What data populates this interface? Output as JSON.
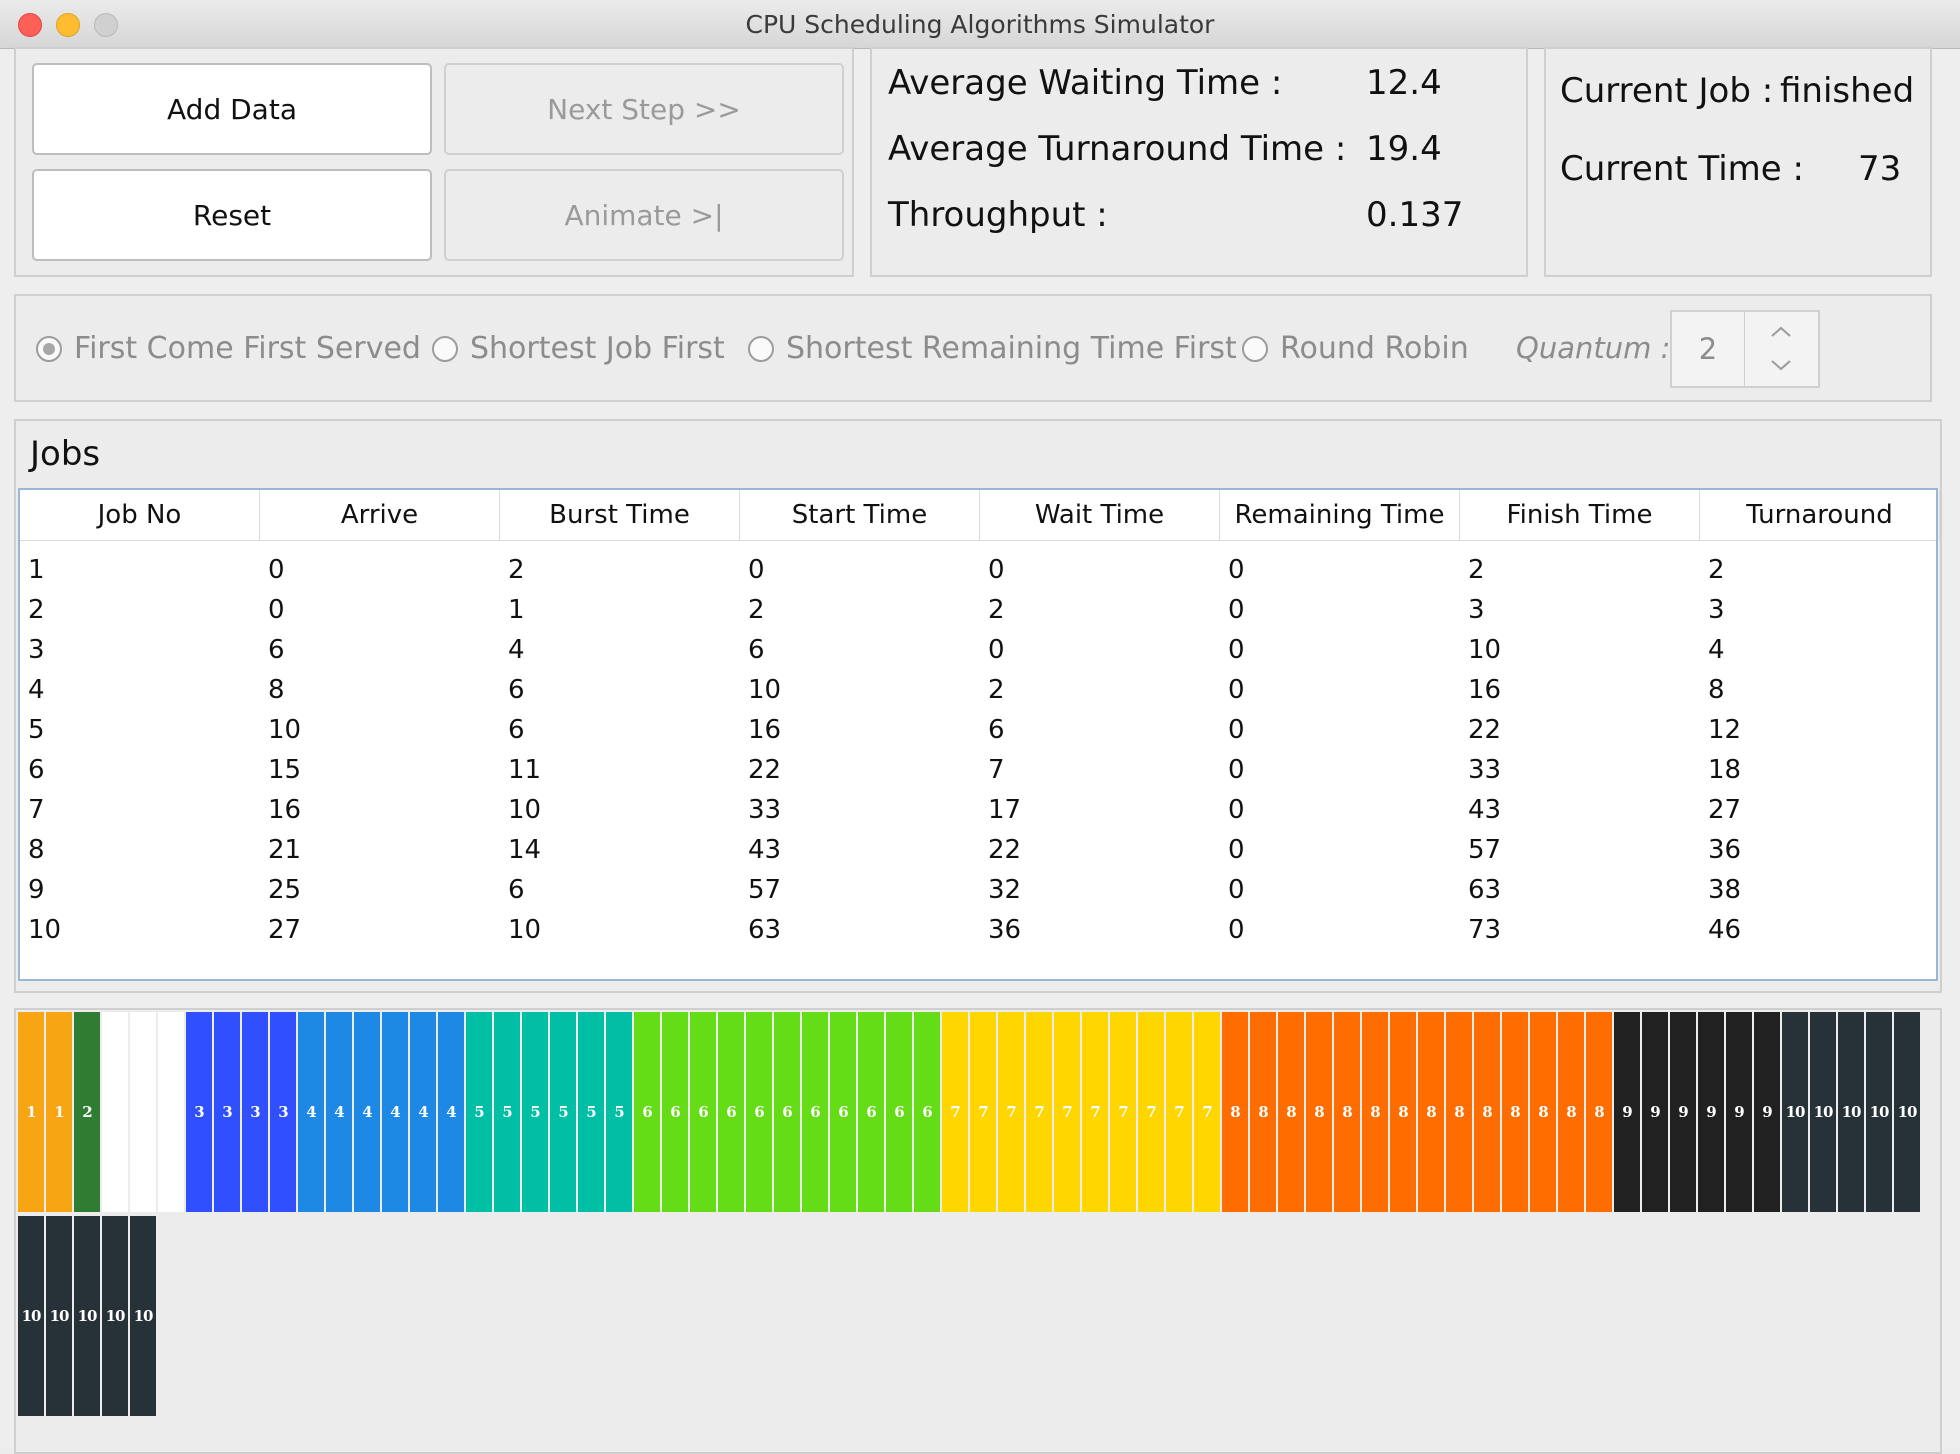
{
  "window": {
    "title": "CPU Scheduling Algorithms Simulator"
  },
  "controls": {
    "add_data": "Add Data",
    "next_step": "Next Step >>",
    "reset": "Reset",
    "animate": "Animate >|"
  },
  "stats": {
    "avg_wait_label": "Average Waiting Time :",
    "avg_wait_value": "12.4",
    "avg_turn_label": "Average Turnaround Time :",
    "avg_turn_value": "19.4",
    "throughput_label": "Throughput :",
    "throughput_value": "0.137"
  },
  "status": {
    "current_job_label": "Current Job :",
    "current_job_value": "finished",
    "current_time_label": "Current Time :",
    "current_time_value": "73"
  },
  "algorithms": {
    "options": [
      {
        "label": "First Come First Served",
        "selected": true
      },
      {
        "label": "Shortest Job First",
        "selected": false
      },
      {
        "label": "Shortest Remaining Time First",
        "selected": false
      },
      {
        "label": "Round Robin",
        "selected": false
      }
    ],
    "quantum_label": "Quantum :",
    "quantum_value": "2"
  },
  "jobs": {
    "title": "Jobs",
    "columns": [
      "Job No",
      "Arrive",
      "Burst Time",
      "Start Time",
      "Wait Time",
      "Remaining Time",
      "Finish Time",
      "Turnaround"
    ],
    "rows": [
      [
        "1",
        "0",
        "2",
        "0",
        "0",
        "0",
        "2",
        "2"
      ],
      [
        "2",
        "0",
        "1",
        "2",
        "2",
        "0",
        "3",
        "3"
      ],
      [
        "3",
        "6",
        "4",
        "6",
        "0",
        "0",
        "10",
        "4"
      ],
      [
        "4",
        "8",
        "6",
        "10",
        "2",
        "0",
        "16",
        "8"
      ],
      [
        "5",
        "10",
        "6",
        "16",
        "6",
        "0",
        "22",
        "12"
      ],
      [
        "6",
        "15",
        "11",
        "22",
        "7",
        "0",
        "33",
        "18"
      ],
      [
        "7",
        "16",
        "10",
        "33",
        "17",
        "0",
        "43",
        "27"
      ],
      [
        "8",
        "21",
        "14",
        "43",
        "22",
        "0",
        "57",
        "36"
      ],
      [
        "9",
        "25",
        "6",
        "57",
        "32",
        "0",
        "63",
        "38"
      ],
      [
        "10",
        "27",
        "10",
        "63",
        "36",
        "0",
        "73",
        "46"
      ]
    ]
  },
  "gantt": {
    "sequence": [
      "1",
      "1",
      "2",
      "",
      "",
      "",
      "3",
      "3",
      "3",
      "3",
      "4",
      "4",
      "4",
      "4",
      "4",
      "4",
      "5",
      "5",
      "5",
      "5",
      "5",
      "5",
      "6",
      "6",
      "6",
      "6",
      "6",
      "6",
      "6",
      "6",
      "6",
      "6",
      "6",
      "7",
      "7",
      "7",
      "7",
      "7",
      "7",
      "7",
      "7",
      "7",
      "7",
      "8",
      "8",
      "8",
      "8",
      "8",
      "8",
      "8",
      "8",
      "8",
      "8",
      "8",
      "8",
      "8",
      "8",
      "9",
      "9",
      "9",
      "9",
      "9",
      "9",
      "10",
      "10",
      "10",
      "10",
      "10",
      "10",
      "10",
      "10",
      "10",
      "10"
    ],
    "colors": {
      "1": "#f8a513",
      "2": "#2e7d32",
      "3": "#304ffe",
      "4": "#1e88e5",
      "5": "#00bfa5",
      "6": "#64dd17",
      "7": "#ffd600",
      "8": "#ff6d00",
      "9": "#212121",
      "10": "#263238",
      "idle": "#ffffff"
    }
  }
}
